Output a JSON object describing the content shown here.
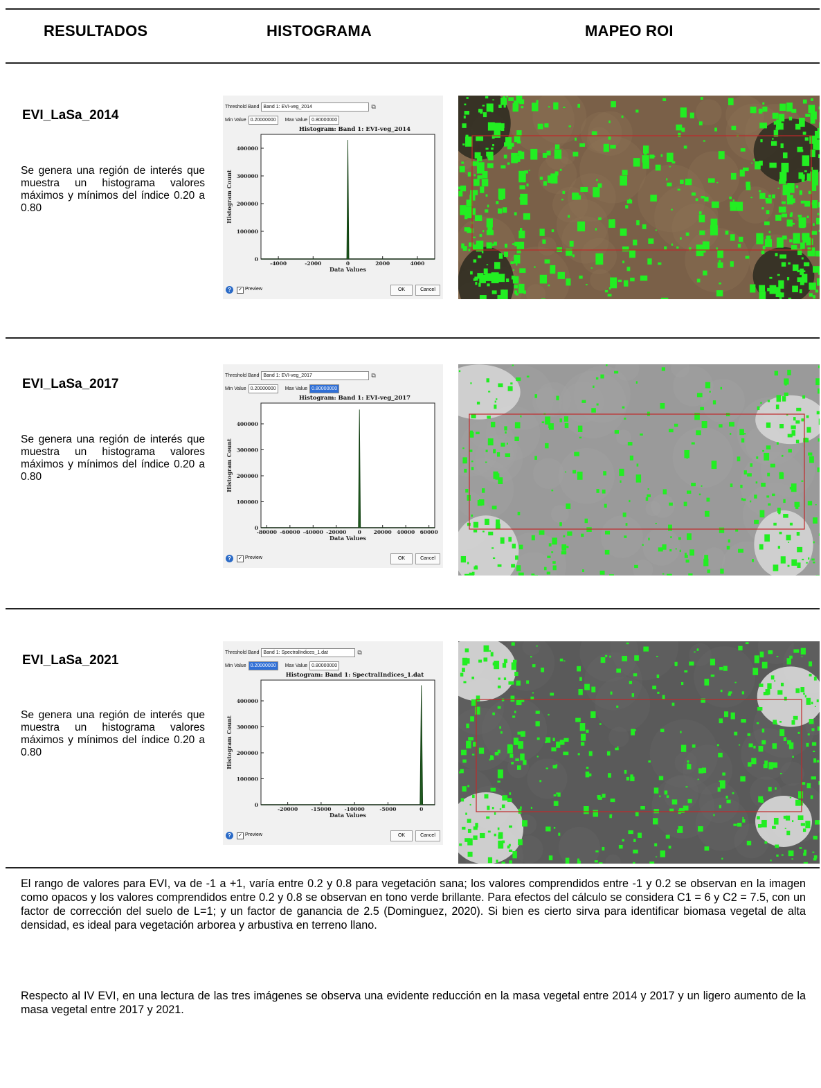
{
  "headers": {
    "resultados": "RESULTADOS",
    "histograma": "HISTOGRAMA",
    "mapeo": "MAPEO ROI"
  },
  "rows": [
    {
      "title": "EVI_LaSa_2014",
      "description": "Se genera una región de interés que muestra un histograma valores máximos y mínimos del índice 0.20 a 0.80",
      "dialog": {
        "threshold_label": "Threshold Band",
        "band_value": "Band 1: EVI-veg_2014",
        "min_label": "Min Value",
        "min_value": "0.20000000",
        "max_label": "Max Value",
        "max_value": "0.80000000",
        "plot_title": "Histogram: Band 1: EVI-veg_2014",
        "ylabel": "Histogram Count",
        "xlabel": "Data Values",
        "preview_label": "Preview",
        "ok_label": "OK",
        "cancel_label": "Cancel"
      },
      "chart_data": {
        "type": "area",
        "title": "Histogram: Band 1: EVI-veg_2014",
        "xlabel": "Data Values",
        "ylabel": "Histogram Count",
        "xlim": [
          -5000,
          5000
        ],
        "ylim": [
          0,
          450000
        ],
        "xticks": [
          "-4000",
          "-2000",
          "0",
          "2000",
          "4000"
        ],
        "yticks": [
          "0",
          "100000",
          "200000",
          "300000",
          "400000"
        ],
        "x": [
          -5000,
          -60,
          0,
          60,
          5000
        ],
        "y": [
          0,
          0,
          430000,
          0,
          0
        ]
      },
      "map_theme": {
        "bg": "#7a6048",
        "bg2": "#8d7256",
        "dark": "#2c2a20"
      }
    },
    {
      "title": "EVI_LaSa_2017",
      "description": "Se genera una región de interés que muestra un histograma valores máximos y mínimos del índice 0.20 a 0.80",
      "dialog": {
        "threshold_label": "Threshold Band",
        "band_value": "Band 1: EVI-veg_2017",
        "min_label": "Min Value",
        "min_value": "0.20000000",
        "max_label": "Max Value",
        "max_value": "0.80000000",
        "plot_title": "Histogram: Band 1: EVI-veg_2017",
        "ylabel": "Histogram Count",
        "xlabel": "Data Values",
        "preview_label": "Preview",
        "ok_label": "OK",
        "cancel_label": "Cancel"
      },
      "chart_data": {
        "type": "area",
        "title": "Histogram: Band 1: EVI-veg_2017",
        "xlabel": "Data Values",
        "ylabel": "Histogram Count",
        "xlim": [
          -85000,
          65000
        ],
        "ylim": [
          0,
          480000
        ],
        "xticks": [
          "-80000",
          "-60000",
          "-40000",
          "-20000",
          "0",
          "20000",
          "40000",
          "60000"
        ],
        "yticks": [
          "0",
          "100000",
          "200000",
          "300000",
          "400000"
        ],
        "x": [
          -85000,
          -900,
          0,
          900,
          65000
        ],
        "y": [
          0,
          0,
          455000,
          0,
          0
        ]
      },
      "map_theme": {
        "bg": "#9a9a9a",
        "bg2": "#a4a4a4",
        "dark": "#d8d8d8"
      }
    },
    {
      "title": "EVI_LaSa_2021",
      "description": "Se genera una región de interés que muestra un histograma valores máximos y mínimos del índice 0.20 a 0.80",
      "dialog": {
        "threshold_label": "Threshold Band",
        "band_value": "Band 1: SpectralIndices_1.dat",
        "min_label": "Min Value",
        "min_value": "0.20000000",
        "max_label": "Max Value",
        "max_value": "0.80000000",
        "plot_title": "Histogram: Band 1: SpectralIndices_1.dat",
        "ylabel": "Histogram Count",
        "xlabel": "Data Values",
        "preview_label": "Preview",
        "ok_label": "OK",
        "cancel_label": "Cancel"
      },
      "chart_data": {
        "type": "area",
        "title": "Histogram: Band 1: SpectralIndices_1.dat",
        "xlabel": "Data Values",
        "ylabel": "Histogram Count",
        "xlim": [
          -24000,
          2000
        ],
        "ylim": [
          0,
          480000
        ],
        "xticks": [
          "-20000",
          "-15000",
          "-10000",
          "-5000",
          "0"
        ],
        "yticks": [
          "0",
          "100000",
          "200000",
          "300000",
          "400000"
        ],
        "x": [
          -24000,
          -200,
          0,
          200,
          2000
        ],
        "y": [
          0,
          0,
          460000,
          0,
          0
        ]
      },
      "map_theme": {
        "bg": "#5a5a5a",
        "bg2": "#666666",
        "dark": "#e2e2e2"
      }
    }
  ],
  "paragraphs": [
    "El rango de valores para EVI, va de -1 a +1, varía entre 0.2 y 0.8 para vegetación sana; los valores comprendidos entre -1 y 0.2 se observan en la imagen como opacos y los valores comprendidos entre 0.2 y 0.8 se observan en tono verde brillante. Para efectos del cálculo se considera C1 = 6 y C2 = 7.5, con un factor de corrección del suelo de L=1; y un factor de ganancia de 2.5 (Dominguez, 2020). Si bien es cierto sirva para identificar biomasa vegetal de alta densidad, es ideal para vegetación arborea y arbustiva en terreno llano.",
    "Respecto al IV EVI, en una lectura de las tres imágenes se observa una evidente reducción en la masa vegetal entre 2014 y 2017 y un ligero aumento de la masa vegetal entre 2017 y 2021."
  ],
  "colors": {
    "vegetation_green": "#22ee22",
    "roi_red": "#c0282a",
    "histogram_bar": "#1f5a1f"
  }
}
